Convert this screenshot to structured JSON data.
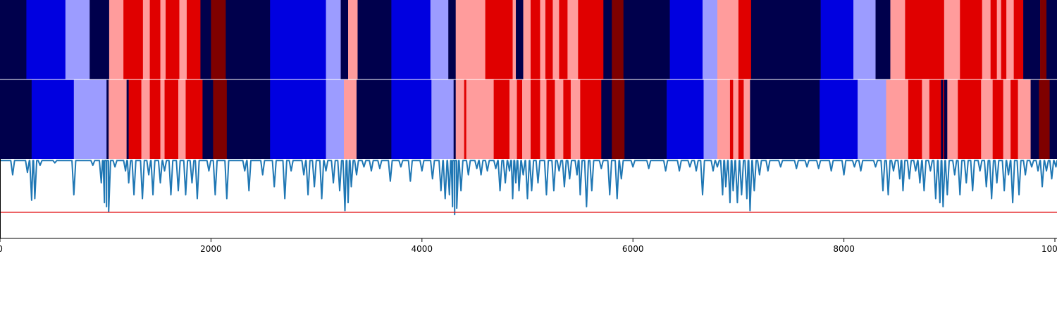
{
  "chart_data": {
    "type": "heatmap",
    "description": "Two state-sequence color strips stacked over a line plot sharing one x axis",
    "xlim": [
      0,
      10020
    ],
    "x_ticks": [
      0,
      2000,
      4000,
      6000,
      8000,
      10000
    ],
    "x_tick_labels": [
      "0",
      "2000",
      "4000",
      "6000",
      "8000",
      "10000"
    ],
    "state_colors": {
      "0": "#00004c",
      "1": "#0000e0",
      "2": "#9c9cff",
      "3": "#ff9c9c",
      "4": "#e00000",
      "5": "#7f0000"
    },
    "strips": [
      {
        "segments": [
          [
            0,
            250,
            0
          ],
          [
            250,
            620,
            1
          ],
          [
            620,
            850,
            2
          ],
          [
            850,
            1035,
            0
          ],
          [
            1035,
            1170,
            3
          ],
          [
            1170,
            1355,
            4
          ],
          [
            1355,
            1420,
            3
          ],
          [
            1420,
            1520,
            4
          ],
          [
            1520,
            1570,
            3
          ],
          [
            1570,
            1700,
            4
          ],
          [
            1700,
            1770,
            3
          ],
          [
            1770,
            1900,
            4
          ],
          [
            1900,
            2000,
            0
          ],
          [
            2000,
            2140,
            5
          ],
          [
            2140,
            2560,
            0
          ],
          [
            2560,
            3090,
            1
          ],
          [
            3090,
            3230,
            2
          ],
          [
            3230,
            3300,
            0
          ],
          [
            3300,
            3390,
            3
          ],
          [
            3390,
            3710,
            0
          ],
          [
            3710,
            4080,
            1
          ],
          [
            4080,
            4250,
            2
          ],
          [
            4250,
            4320,
            0
          ],
          [
            4320,
            4600,
            3
          ],
          [
            4600,
            4860,
            4
          ],
          [
            4860,
            4890,
            3
          ],
          [
            4890,
            4960,
            0
          ],
          [
            4960,
            5030,
            3
          ],
          [
            5030,
            5120,
            4
          ],
          [
            5120,
            5170,
            3
          ],
          [
            5170,
            5240,
            4
          ],
          [
            5240,
            5300,
            3
          ],
          [
            5300,
            5380,
            4
          ],
          [
            5380,
            5480,
            3
          ],
          [
            5480,
            5720,
            4
          ],
          [
            5720,
            5800,
            0
          ],
          [
            5800,
            5910,
            5
          ],
          [
            5910,
            6350,
            0
          ],
          [
            6350,
            6660,
            1
          ],
          [
            6660,
            6800,
            2
          ],
          [
            6800,
            7000,
            3
          ],
          [
            7000,
            7120,
            4
          ],
          [
            7120,
            7780,
            0
          ],
          [
            7780,
            8090,
            1
          ],
          [
            8090,
            8300,
            2
          ],
          [
            8300,
            8440,
            0
          ],
          [
            8440,
            8580,
            3
          ],
          [
            8580,
            8950,
            4
          ],
          [
            8950,
            9100,
            3
          ],
          [
            9100,
            9310,
            4
          ],
          [
            9310,
            9390,
            3
          ],
          [
            9390,
            9450,
            4
          ],
          [
            9450,
            9490,
            3
          ],
          [
            9490,
            9540,
            4
          ],
          [
            9540,
            9610,
            3
          ],
          [
            9610,
            9700,
            4
          ],
          [
            9700,
            9860,
            0
          ],
          [
            9860,
            9920,
            5
          ],
          [
            9920,
            10020,
            0
          ]
        ]
      },
      {
        "segments": [
          [
            0,
            300,
            0
          ],
          [
            300,
            700,
            1
          ],
          [
            700,
            1010,
            2
          ],
          [
            1010,
            1030,
            0
          ],
          [
            1030,
            1200,
            3
          ],
          [
            1200,
            1220,
            0
          ],
          [
            1220,
            1340,
            4
          ],
          [
            1340,
            1420,
            3
          ],
          [
            1420,
            1520,
            4
          ],
          [
            1520,
            1560,
            3
          ],
          [
            1560,
            1690,
            4
          ],
          [
            1690,
            1760,
            3
          ],
          [
            1760,
            1920,
            4
          ],
          [
            1920,
            2020,
            0
          ],
          [
            2020,
            2150,
            5
          ],
          [
            2150,
            2560,
            0
          ],
          [
            2560,
            3090,
            1
          ],
          [
            3090,
            3260,
            2
          ],
          [
            3260,
            3380,
            3
          ],
          [
            3380,
            3710,
            0
          ],
          [
            3710,
            4090,
            1
          ],
          [
            4090,
            4300,
            2
          ],
          [
            4300,
            4320,
            0
          ],
          [
            4320,
            4400,
            3
          ],
          [
            4400,
            4420,
            4
          ],
          [
            4420,
            4680,
            3
          ],
          [
            4680,
            4830,
            4
          ],
          [
            4830,
            4900,
            3
          ],
          [
            4900,
            4950,
            4
          ],
          [
            4950,
            5030,
            3
          ],
          [
            5030,
            5120,
            4
          ],
          [
            5120,
            5180,
            3
          ],
          [
            5180,
            5260,
            4
          ],
          [
            5260,
            5340,
            3
          ],
          [
            5340,
            5410,
            4
          ],
          [
            5410,
            5500,
            3
          ],
          [
            5500,
            5700,
            4
          ],
          [
            5700,
            5800,
            0
          ],
          [
            5800,
            5920,
            5
          ],
          [
            5920,
            6320,
            0
          ],
          [
            6320,
            6670,
            1
          ],
          [
            6670,
            6800,
            2
          ],
          [
            6800,
            6920,
            3
          ],
          [
            6920,
            6950,
            4
          ],
          [
            6950,
            7000,
            3
          ],
          [
            7000,
            7050,
            4
          ],
          [
            7050,
            7110,
            3
          ],
          [
            7110,
            7770,
            0
          ],
          [
            7770,
            8130,
            1
          ],
          [
            8130,
            8400,
            2
          ],
          [
            8400,
            8610,
            3
          ],
          [
            8610,
            8740,
            4
          ],
          [
            8740,
            8810,
            3
          ],
          [
            8810,
            8920,
            4
          ],
          [
            8920,
            8940,
            0
          ],
          [
            8940,
            8950,
            4
          ],
          [
            8950,
            8980,
            0
          ],
          [
            8980,
            9080,
            3
          ],
          [
            9080,
            9300,
            4
          ],
          [
            9300,
            9410,
            3
          ],
          [
            9410,
            9510,
            4
          ],
          [
            9510,
            9580,
            3
          ],
          [
            9580,
            9650,
            4
          ],
          [
            9650,
            9770,
            3
          ],
          [
            9770,
            9850,
            0
          ],
          [
            9850,
            9950,
            5
          ],
          [
            9950,
            10020,
            0
          ]
        ]
      }
    ],
    "line": {
      "color": "#1f77b4",
      "ylim": [
        0,
        1
      ],
      "threshold": 0.33,
      "threshold_color": "#e31a1c",
      "baseline": 0.98,
      "dips": [
        [
          120,
          0.8
        ],
        [
          260,
          0.83
        ],
        [
          300,
          0.48
        ],
        [
          330,
          0.5
        ],
        [
          380,
          0.92
        ],
        [
          520,
          0.95
        ],
        [
          700,
          0.55
        ],
        [
          880,
          0.92
        ],
        [
          960,
          0.7
        ],
        [
          990,
          0.45
        ],
        [
          1010,
          0.4
        ],
        [
          1030,
          0.33
        ],
        [
          1090,
          0.9
        ],
        [
          1190,
          0.85
        ],
        [
          1220,
          0.7
        ],
        [
          1270,
          0.55
        ],
        [
          1350,
          0.5
        ],
        [
          1410,
          0.8
        ],
        [
          1450,
          0.55
        ],
        [
          1520,
          0.7
        ],
        [
          1560,
          0.85
        ],
        [
          1620,
          0.55
        ],
        [
          1690,
          0.6
        ],
        [
          1760,
          0.55
        ],
        [
          1820,
          0.7
        ],
        [
          1870,
          0.5
        ],
        [
          1980,
          0.85
        ],
        [
          2040,
          0.55
        ],
        [
          2150,
          0.5
        ],
        [
          2320,
          0.85
        ],
        [
          2360,
          0.6
        ],
        [
          2490,
          0.8
        ],
        [
          2600,
          0.65
        ],
        [
          2700,
          0.5
        ],
        [
          2760,
          0.85
        ],
        [
          2880,
          0.8
        ],
        [
          2920,
          0.55
        ],
        [
          2980,
          0.65
        ],
        [
          3050,
          0.5
        ],
        [
          3090,
          0.85
        ],
        [
          3160,
          0.7
        ],
        [
          3220,
          0.6
        ],
        [
          3270,
          0.35
        ],
        [
          3300,
          0.45
        ],
        [
          3330,
          0.65
        ],
        [
          3380,
          0.8
        ],
        [
          3450,
          0.9
        ],
        [
          3520,
          0.85
        ],
        [
          3600,
          0.88
        ],
        [
          3700,
          0.72
        ],
        [
          3800,
          0.9
        ],
        [
          3890,
          0.72
        ],
        [
          4000,
          0.85
        ],
        [
          4100,
          0.75
        ],
        [
          4180,
          0.6
        ],
        [
          4220,
          0.5
        ],
        [
          4260,
          0.55
        ],
        [
          4290,
          0.4
        ],
        [
          4310,
          0.3
        ],
        [
          4330,
          0.38
        ],
        [
          4370,
          0.6
        ],
        [
          4440,
          0.8
        ],
        [
          4520,
          0.88
        ],
        [
          4560,
          0.8
        ],
        [
          4620,
          0.85
        ],
        [
          4700,
          0.88
        ],
        [
          4740,
          0.6
        ],
        [
          4790,
          0.7
        ],
        [
          4830,
          0.85
        ],
        [
          4860,
          0.5
        ],
        [
          4890,
          0.7
        ],
        [
          4920,
          0.6
        ],
        [
          4960,
          0.8
        ],
        [
          5000,
          0.5
        ],
        [
          5040,
          0.6
        ],
        [
          5100,
          0.7
        ],
        [
          5180,
          0.55
        ],
        [
          5250,
          0.6
        ],
        [
          5300,
          0.85
        ],
        [
          5350,
          0.65
        ],
        [
          5400,
          0.75
        ],
        [
          5470,
          0.8
        ],
        [
          5500,
          0.55
        ],
        [
          5560,
          0.4
        ],
        [
          5610,
          0.6
        ],
        [
          5700,
          0.88
        ],
        [
          5780,
          0.55
        ],
        [
          5850,
          0.5
        ],
        [
          5890,
          0.75
        ],
        [
          6000,
          0.9
        ],
        [
          6150,
          0.88
        ],
        [
          6310,
          0.85
        ],
        [
          6440,
          0.85
        ],
        [
          6540,
          0.9
        ],
        [
          6600,
          0.85
        ],
        [
          6660,
          0.55
        ],
        [
          6760,
          0.85
        ],
        [
          6800,
          0.9
        ],
        [
          6850,
          0.55
        ],
        [
          6880,
          0.65
        ],
        [
          6920,
          0.45
        ],
        [
          6950,
          0.6
        ],
        [
          6990,
          0.45
        ],
        [
          7030,
          0.55
        ],
        [
          7080,
          0.5
        ],
        [
          7110,
          0.35
        ],
        [
          7150,
          0.6
        ],
        [
          7200,
          0.8
        ],
        [
          7280,
          0.85
        ],
        [
          7400,
          0.9
        ],
        [
          7550,
          0.88
        ],
        [
          7650,
          0.9
        ],
        [
          7760,
          0.88
        ],
        [
          7880,
          0.85
        ],
        [
          8000,
          0.8
        ],
        [
          8100,
          0.9
        ],
        [
          8160,
          0.85
        ],
        [
          8300,
          0.9
        ],
        [
          8370,
          0.6
        ],
        [
          8420,
          0.55
        ],
        [
          8470,
          0.85
        ],
        [
          8530,
          0.75
        ],
        [
          8560,
          0.6
        ],
        [
          8620,
          0.75
        ],
        [
          8680,
          0.85
        ],
        [
          8720,
          0.7
        ],
        [
          8760,
          0.6
        ],
        [
          8820,
          0.85
        ],
        [
          8870,
          0.5
        ],
        [
          8910,
          0.45
        ],
        [
          8940,
          0.4
        ],
        [
          8980,
          0.55
        ],
        [
          9050,
          0.8
        ],
        [
          9100,
          0.55
        ],
        [
          9160,
          0.7
        ],
        [
          9220,
          0.6
        ],
        [
          9290,
          0.85
        ],
        [
          9350,
          0.65
        ],
        [
          9400,
          0.5
        ],
        [
          9450,
          0.7
        ],
        [
          9520,
          0.6
        ],
        [
          9560,
          0.8
        ],
        [
          9600,
          0.45
        ],
        [
          9660,
          0.55
        ],
        [
          9720,
          0.8
        ],
        [
          9780,
          0.9
        ],
        [
          9840,
          0.85
        ],
        [
          9880,
          0.65
        ],
        [
          9920,
          0.85
        ],
        [
          9970,
          0.75
        ],
        [
          10010,
          0.9
        ]
      ]
    }
  }
}
